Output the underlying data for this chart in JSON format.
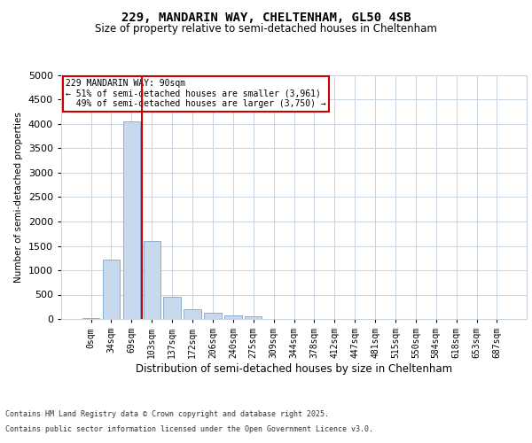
{
  "title_line1": "229, MANDARIN WAY, CHELTENHAM, GL50 4SB",
  "title_line2": "Size of property relative to semi-detached houses in Cheltenham",
  "xlabel": "Distribution of semi-detached houses by size in Cheltenham",
  "ylabel": "Number of semi-detached properties",
  "categories": [
    "0sqm",
    "34sqm",
    "69sqm",
    "103sqm",
    "137sqm",
    "172sqm",
    "206sqm",
    "240sqm",
    "275sqm",
    "309sqm",
    "344sqm",
    "378sqm",
    "412sqm",
    "447sqm",
    "481sqm",
    "515sqm",
    "550sqm",
    "584sqm",
    "618sqm",
    "653sqm",
    "687sqm"
  ],
  "values": [
    10,
    1220,
    4050,
    1600,
    460,
    200,
    130,
    80,
    55,
    0,
    0,
    0,
    0,
    0,
    0,
    0,
    0,
    0,
    0,
    0,
    0
  ],
  "bar_color": "#c8d9ed",
  "bar_edge_color": "#7ba7cc",
  "vline_x": 2.5,
  "vline_color": "#cc0000",
  "annotation_text": "229 MANDARIN WAY: 90sqm\n← 51% of semi-detached houses are smaller (3,961)\n  49% of semi-detached houses are larger (3,750) →",
  "annotation_box_color": "#ffffff",
  "annotation_box_edge": "#cc0000",
  "ylim": [
    0,
    5000
  ],
  "yticks": [
    0,
    500,
    1000,
    1500,
    2000,
    2500,
    3000,
    3500,
    4000,
    4500,
    5000
  ],
  "footer_line1": "Contains HM Land Registry data © Crown copyright and database right 2025.",
  "footer_line2": "Contains public sector information licensed under the Open Government Licence v3.0.",
  "background_color": "#ffffff",
  "grid_color": "#c8d4e0"
}
